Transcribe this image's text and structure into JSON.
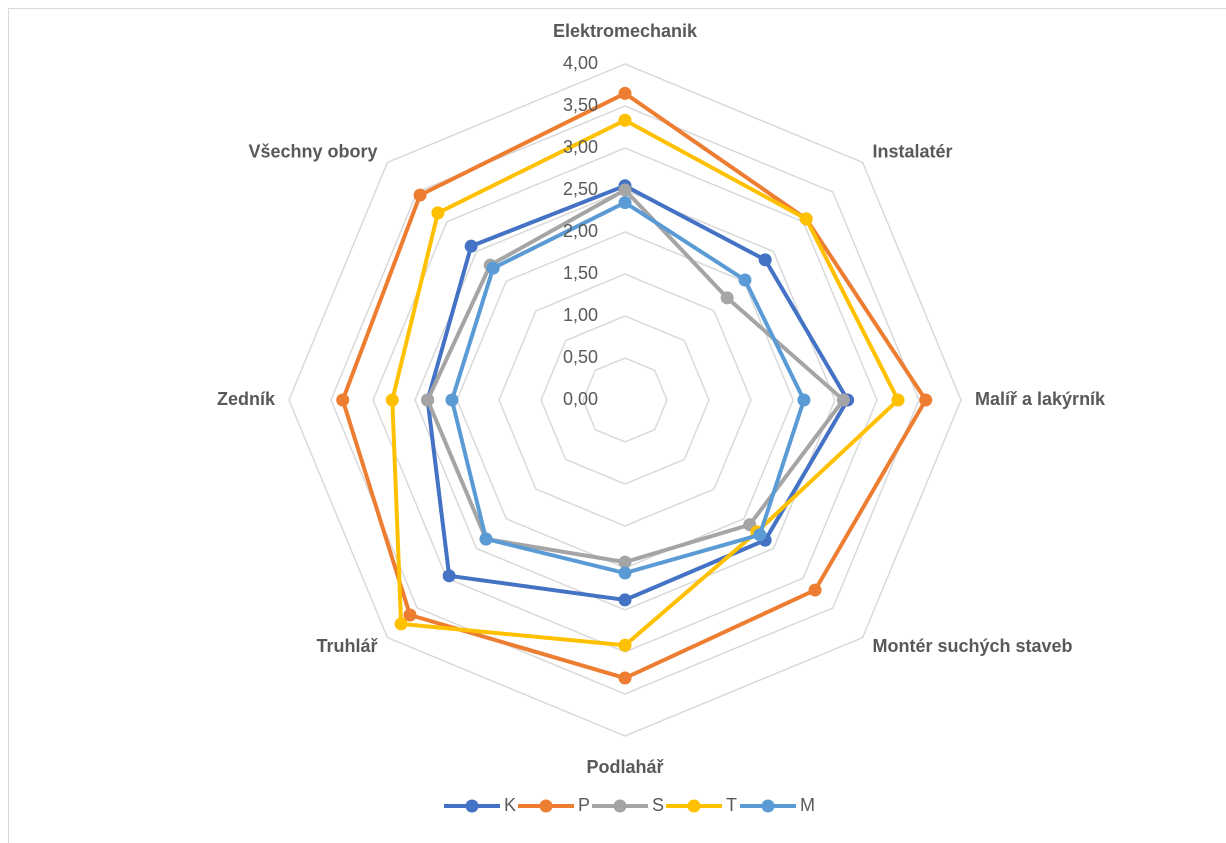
{
  "chart_data": {
    "type": "radar",
    "categories": [
      "Elektromechanik",
      "Instalatér",
      "Malíř a lakýrník",
      "Montér suchých staveb",
      "Podlahář",
      "Truhlář",
      "Zedník",
      "Všechny obory"
    ],
    "series": [
      {
        "name": "K",
        "color": "#4472c4",
        "values": [
          2.55,
          2.36,
          2.65,
          2.36,
          2.38,
          2.96,
          2.35,
          2.59
        ]
      },
      {
        "name": "P",
        "color": "#ed7d31",
        "values": [
          3.65,
          3.05,
          3.58,
          3.2,
          3.31,
          3.62,
          3.36,
          3.45
        ]
      },
      {
        "name": "S",
        "color": "#a5a5a5",
        "values": [
          2.5,
          1.72,
          2.6,
          2.1,
          1.93,
          2.34,
          2.35,
          2.27
        ]
      },
      {
        "name": "T",
        "color": "#ffc000",
        "values": [
          3.33,
          3.05,
          3.25,
          2.22,
          2.92,
          3.77,
          2.77,
          3.15
        ]
      },
      {
        "name": "M",
        "color": "#5b9bd5",
        "values": [
          2.35,
          2.02,
          2.13,
          2.27,
          2.06,
          2.34,
          2.06,
          2.22
        ]
      }
    ],
    "ylim": [
      0,
      4
    ],
    "yticks": [
      {
        "value": 0,
        "label": "0,00"
      },
      {
        "value": 0.5,
        "label": "0,50"
      },
      {
        "value": 1,
        "label": "1,00"
      },
      {
        "value": 1.5,
        "label": "1,50"
      },
      {
        "value": 2,
        "label": "2,00"
      },
      {
        "value": 2.5,
        "label": "2,50"
      },
      {
        "value": 3,
        "label": "3,00"
      },
      {
        "value": 3.5,
        "label": "3,50"
      },
      {
        "value": 4,
        "label": "4,00"
      }
    ],
    "grid": true,
    "legend": "bottom"
  }
}
